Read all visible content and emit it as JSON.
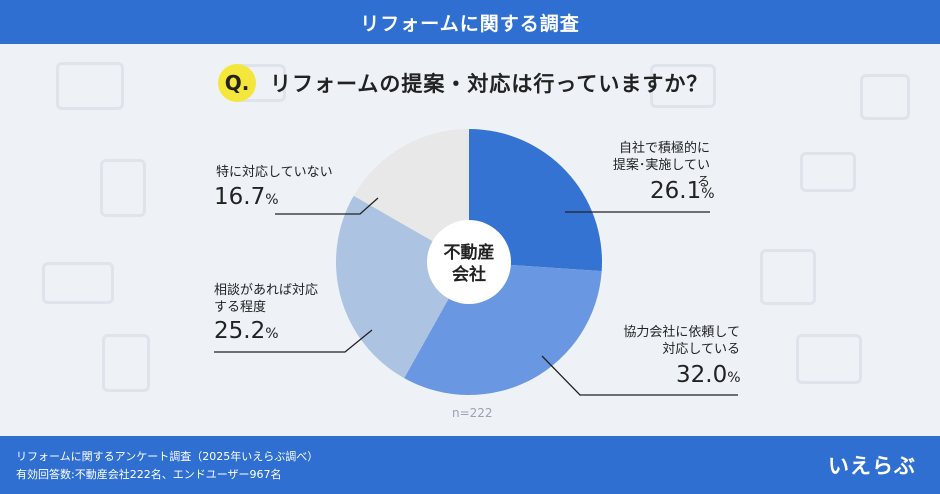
{
  "header": {
    "title": "リフォームに関する調査"
  },
  "question": {
    "badge": "Q.",
    "text": "リフォームの提案・対応は行っていますか？"
  },
  "center_label": {
    "line1": "不動産",
    "line2": "会社"
  },
  "sample_note": "n=222",
  "footer": {
    "line1": "リフォームに関するアンケート調査（2025年いえらぶ調べ）",
    "line2": "有効回答数:不動産会社222名、エンドユーザー967名",
    "logo": "いえらぶ"
  },
  "colors": {
    "header": "#2f6fd1",
    "slice1": "#3573d2",
    "slice2": "#6a97e2",
    "slice3": "#adc3e2",
    "slice4": "#e8e8e8"
  },
  "chart_data": {
    "type": "pie",
    "categories": [
      "自社で積極的に提案・実施している",
      "協力会社に依頼して対応している",
      "相談があれば対応する程度",
      "特に対応していない"
    ],
    "values": [
      26.1,
      32.0,
      25.2,
      16.7
    ],
    "unit": "%",
    "labels": [
      {
        "lines": [
          "自社で積極的に",
          "提案･実施している"
        ],
        "value": "26.1",
        "unit": "%"
      },
      {
        "lines": [
          "協力会社に依頼して",
          "対応している"
        ],
        "value": "32.0",
        "unit": "%"
      },
      {
        "lines": [
          "相談があれば対応",
          "する程度"
        ],
        "value": "25.2",
        "unit": "%"
      },
      {
        "lines": [
          "特に対応していない"
        ],
        "value": "16.7",
        "unit": "%"
      }
    ]
  }
}
